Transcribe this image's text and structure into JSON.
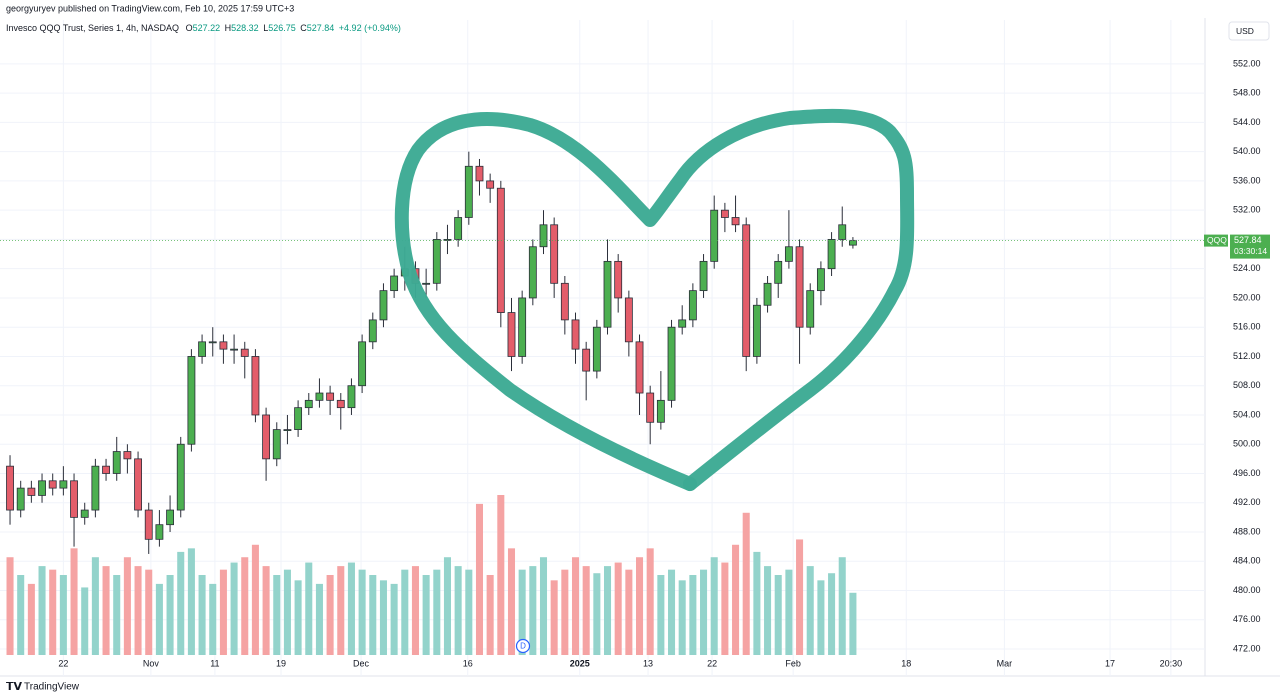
{
  "header": {
    "publisher": "georgyuryev published on TradingView.com, Feb 10, 2025 17:59 UTC+3",
    "footer": "TradingView"
  },
  "chart_data": {
    "type": "candlestick",
    "title": "Invesco QQQ Trust, Series 1, 4h, NASDAQ",
    "ohlc_labels": [
      "O",
      "H",
      "L",
      "C"
    ],
    "change": "+4.92 (+0.94%)",
    "currency": "USD",
    "symbol": "QQQ",
    "countdown": "03:30:14",
    "event_marker": "D",
    "up_color": "#4caf50",
    "down_color": "#e35d6a",
    "volume_up_color": "#93d3cb",
    "volume_down_color": "#f5a3a3",
    "open": [
      497,
      491,
      494,
      493,
      495,
      494,
      495,
      490,
      491,
      497,
      496,
      499,
      498,
      491,
      487,
      489,
      491,
      500,
      512,
      514,
      514,
      513,
      513,
      512,
      504,
      498,
      502,
      502,
      505,
      506,
      507,
      506,
      505,
      508,
      514,
      517,
      521,
      523,
      524,
      522,
      522,
      528,
      528,
      531,
      538,
      536,
      535,
      518,
      512,
      520,
      527,
      530,
      522,
      517,
      513,
      510,
      516,
      525,
      520,
      514,
      507,
      503,
      506,
      516,
      517,
      521,
      525,
      532,
      531,
      530,
      512,
      519,
      522,
      525,
      527,
      516,
      521,
      524,
      528,
      527.22
    ],
    "high": [
      498.5,
      495,
      495,
      496,
      496,
      497,
      496,
      492,
      498,
      498,
      501,
      500,
      499,
      492,
      491,
      493,
      501,
      513,
      515,
      516,
      515,
      515,
      514,
      513,
      505,
      503,
      504,
      506,
      507,
      509,
      508,
      507,
      509,
      515,
      518,
      522,
      524,
      527,
      525,
      524,
      529,
      530,
      532,
      540,
      539,
      537,
      536,
      520,
      521,
      528,
      532,
      531,
      523,
      518,
      514,
      517,
      528,
      526,
      521,
      515,
      508,
      510,
      517,
      519,
      522,
      526,
      534,
      533,
      534,
      531,
      520,
      523,
      526,
      532,
      528,
      522,
      525,
      529,
      532.5,
      528.32
    ],
    "low": [
      489,
      490,
      492,
      492,
      493,
      493,
      486,
      489,
      490,
      495,
      495,
      496,
      490,
      485,
      486,
      488,
      490,
      499,
      511,
      512,
      511,
      511,
      509,
      503,
      495,
      497,
      500,
      501,
      504,
      505,
      504,
      502,
      504,
      507,
      513,
      516,
      520,
      521,
      520,
      520,
      521,
      526,
      527,
      530,
      534,
      533,
      516,
      510,
      511,
      519,
      526,
      520,
      515,
      511,
      506,
      509,
      515,
      518,
      512,
      504,
      500,
      502,
      505,
      515,
      516,
      520,
      524,
      529,
      529,
      510,
      511,
      518,
      520,
      524,
      511,
      515,
      519,
      523,
      527,
      526.75
    ],
    "close": [
      491,
      494,
      493,
      495,
      494,
      495,
      490,
      491,
      497,
      496,
      499,
      498,
      491,
      487,
      489,
      491,
      500,
      512,
      514,
      514,
      513,
      513,
      512,
      504,
      498,
      502,
      502,
      505,
      506,
      507,
      506,
      505,
      508,
      514,
      517,
      521,
      523,
      524,
      522,
      522,
      528,
      528,
      531,
      538,
      536,
      535,
      518,
      512,
      520,
      527,
      530,
      522,
      517,
      513,
      510,
      516,
      525,
      520,
      514,
      507,
      503,
      506,
      516,
      517,
      521,
      525,
      532,
      531,
      530,
      512,
      519,
      522,
      525,
      527,
      516,
      521,
      524,
      528,
      530,
      527.84
    ],
    "volume": [
      55,
      45,
      40,
      50,
      48,
      45,
      60,
      38,
      55,
      50,
      45,
      55,
      50,
      48,
      40,
      45,
      58,
      60,
      45,
      40,
      48,
      52,
      55,
      62,
      50,
      45,
      48,
      42,
      52,
      40,
      45,
      50,
      52,
      48,
      45,
      42,
      40,
      48,
      50,
      45,
      48,
      55,
      50,
      48,
      85,
      45,
      90,
      60,
      48,
      50,
      55,
      42,
      48,
      55,
      50,
      46,
      50,
      52,
      48,
      55,
      60,
      45,
      48,
      42,
      45,
      48,
      55,
      52,
      62,
      80,
      58,
      50,
      45,
      48,
      65,
      50,
      42,
      46,
      55,
      35
    ],
    "ylim": [
      470.5,
      558
    ],
    "yticks": [
      {
        "value": 472,
        "label": "472.00"
      },
      {
        "value": 476,
        "label": "476.00"
      },
      {
        "value": 480,
        "label": "480.00"
      },
      {
        "value": 484,
        "label": "484.00"
      },
      {
        "value": 488,
        "label": "488.00"
      },
      {
        "value": 492,
        "label": "492.00"
      },
      {
        "value": 496,
        "label": "496.00"
      },
      {
        "value": 500,
        "label": "500.00"
      },
      {
        "value": 504,
        "label": "504.00"
      },
      {
        "value": 508,
        "label": "508.00"
      },
      {
        "value": 512,
        "label": "512.00"
      },
      {
        "value": 516,
        "label": "516.00"
      },
      {
        "value": 520,
        "label": "520.00"
      },
      {
        "value": 524,
        "label": "524.00"
      },
      {
        "value": 528,
        "label": "528.00"
      },
      {
        "value": 532,
        "label": "532.00"
      },
      {
        "value": 536,
        "label": "536.00"
      },
      {
        "value": 540,
        "label": "540.00"
      },
      {
        "value": 544,
        "label": "544.00"
      },
      {
        "value": 548,
        "label": "548.00"
      },
      {
        "value": 552,
        "label": "552.00"
      }
    ],
    "xlim": [
      -0.94,
      112
    ],
    "xticks": [
      {
        "value": 5,
        "label": "22"
      },
      {
        "value": 13.2,
        "label": "Nov"
      },
      {
        "value": 19.2,
        "label": "11"
      },
      {
        "value": 25.4,
        "label": "19"
      },
      {
        "value": 32.9,
        "label": "Dec"
      },
      {
        "value": 42.9,
        "label": "16"
      },
      {
        "value": 53.4,
        "label": "2025"
      },
      {
        "value": 59.8,
        "label": "13"
      },
      {
        "value": 65.8,
        "label": "22"
      },
      {
        "value": 73.4,
        "label": "Feb"
      },
      {
        "value": 84,
        "label": "18"
      },
      {
        "value": 93.2,
        "label": "Mar"
      },
      {
        "value": 103.1,
        "label": "17"
      },
      {
        "value": 108.8,
        "label": "20:30"
      }
    ]
  }
}
